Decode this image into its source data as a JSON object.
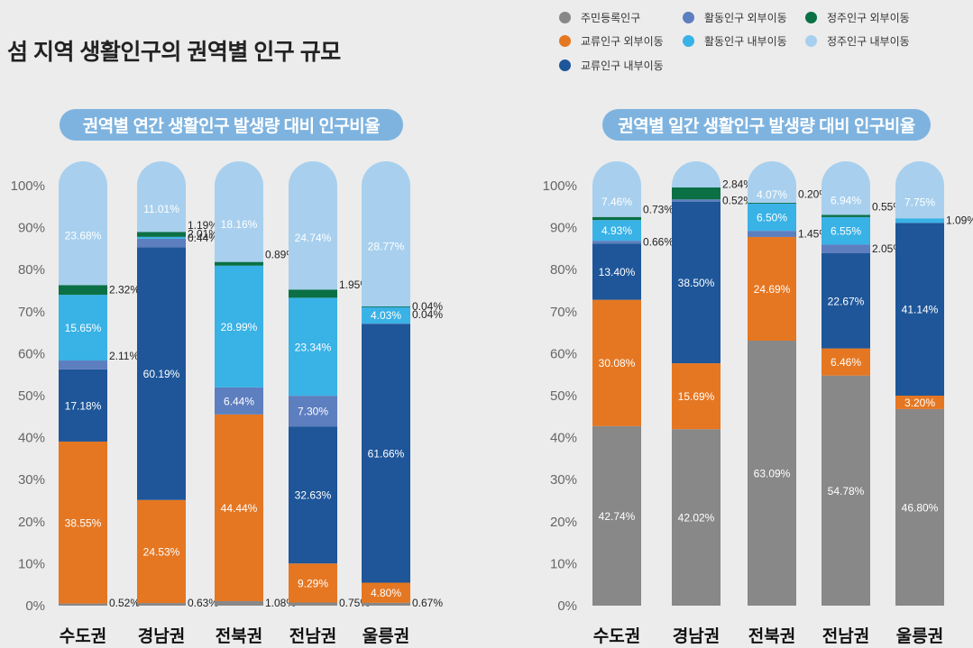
{
  "page": {
    "title": "섬 지역 생활인구의 권역별 인구 규모"
  },
  "legend": [
    {
      "label": "주민등록인구",
      "color": "#888888"
    },
    {
      "label": "활동인구 외부이동",
      "color": "#5d7ebf"
    },
    {
      "label": "정주인구 외부이동",
      "color": "#0b7045"
    },
    {
      "label": "교류인구 외부이동",
      "color": "#e57722"
    },
    {
      "label": "활동인구 내부이동",
      "color": "#39b2e6"
    },
    {
      "label": "정주인구 내부이동",
      "color": "#a8d0ee"
    },
    {
      "label": "교류인구 내부이동",
      "color": "#1e5699"
    }
  ],
  "chart_data": [
    {
      "type": "bar",
      "stacked": true,
      "title": "권역별 연간 생활인구 발생량 대비 인구비율",
      "categories": [
        "수도권",
        "경남권",
        "전북권",
        "전남권",
        "울릉권"
      ],
      "yticks": [
        "0%",
        "10%",
        "20%",
        "30%",
        "40%",
        "50%",
        "60%",
        "70%",
        "80%",
        "90%",
        "100%"
      ],
      "ylim": [
        0,
        100
      ],
      "series": [
        {
          "name": "주민등록인구",
          "color": "#888888",
          "values": [
            0.52,
            0.63,
            1.08,
            0.75,
            0.67
          ],
          "labels": [
            "0.52%",
            "0.63%",
            "1.08%",
            "0.75%",
            "0.67%"
          ]
        },
        {
          "name": "교류인구 외부이동",
          "color": "#e57722",
          "values": [
            38.55,
            24.53,
            44.44,
            9.29,
            4.8
          ],
          "labels": [
            "38.55%",
            "24.53%",
            "44.44%",
            "9.29%",
            "4.80%"
          ]
        },
        {
          "name": "교류인구 내부이동",
          "color": "#1e5699",
          "values": [
            17.18,
            60.19,
            0,
            32.63,
            61.66
          ],
          "labels": [
            "17.18%",
            "60.19%",
            "",
            "32.63%",
            "61.66%"
          ]
        },
        {
          "name": "활동인구 외부이동",
          "color": "#5d7ebf",
          "values": [
            2.11,
            2.01,
            6.44,
            7.3,
            0.04
          ],
          "labels": [
            "2.11%",
            "2.01%",
            "6.44%",
            "7.30%",
            "0.04%"
          ]
        },
        {
          "name": "활동인구 내부이동",
          "color": "#39b2e6",
          "values": [
            15.65,
            0.44,
            28.99,
            23.34,
            4.03
          ],
          "labels": [
            "15.65%",
            "0.44%",
            "28.99%",
            "23.34%",
            "4.03%"
          ]
        },
        {
          "name": "정주인구 외부이동",
          "color": "#0b7045",
          "values": [
            2.32,
            1.19,
            0.89,
            1.95,
            0.04
          ],
          "labels": [
            "2.32%",
            "1.19%",
            "0.89%",
            "1.95%",
            "0.04%"
          ]
        },
        {
          "name": "정주인구 내부이동",
          "color": "#a8d0ee",
          "values": [
            23.68,
            11.01,
            18.16,
            24.74,
            28.77
          ],
          "labels": [
            "23.68%",
            "11.01%",
            "18.16%",
            "24.74%",
            "28.77%"
          ]
        }
      ]
    },
    {
      "type": "bar",
      "stacked": true,
      "title": "권역별 일간 생활인구 발생량 대비 인구비율",
      "categories": [
        "수도권",
        "경남권",
        "전북권",
        "전남권",
        "울릉권"
      ],
      "yticks": [
        "0%",
        "10%",
        "20%",
        "30%",
        "40%",
        "50%",
        "60%",
        "70%",
        "80%",
        "90%",
        "100%"
      ],
      "ylim": [
        0,
        100
      ],
      "series": [
        {
          "name": "주민등록인구",
          "color": "#888888",
          "values": [
            42.74,
            42.02,
            63.09,
            54.78,
            46.8
          ],
          "labels": [
            "42.74%",
            "42.02%",
            "63.09%",
            "54.78%",
            "46.80%"
          ]
        },
        {
          "name": "교류인구 외부이동",
          "color": "#e57722",
          "values": [
            30.08,
            15.69,
            24.69,
            6.46,
            3.2
          ],
          "labels": [
            "30.08%",
            "15.69%",
            "24.69%",
            "6.46%",
            "3.20%"
          ]
        },
        {
          "name": "교류인구 내부이동",
          "color": "#1e5699",
          "values": [
            13.4,
            38.5,
            0,
            22.67,
            41.14
          ],
          "labels": [
            "13.40%",
            "38.50%",
            "",
            "22.67%",
            "41.14%"
          ]
        },
        {
          "name": "활동인구 외부이동",
          "color": "#5d7ebf",
          "values": [
            0.66,
            0.52,
            1.45,
            2.05,
            0
          ],
          "labels": [
            "0.66%",
            "0.52%",
            "1.45%",
            "2.05%",
            ""
          ]
        },
        {
          "name": "활동인구 내부이동",
          "color": "#39b2e6",
          "values": [
            4.93,
            0,
            6.5,
            6.55,
            1.09
          ],
          "labels": [
            "4.93%",
            "",
            "6.50%",
            "6.55%",
            "1.09%"
          ]
        },
        {
          "name": "정주인구 외부이동",
          "color": "#0b7045",
          "values": [
            0.73,
            2.84,
            0.2,
            0.55,
            0
          ],
          "labels": [
            "0.73%",
            "2.84%",
            "0.20%",
            "0.55%",
            ""
          ]
        },
        {
          "name": "정주인구 내부이동",
          "color": "#a8d0ee",
          "values": [
            7.46,
            0,
            4.07,
            6.94,
            7.75
          ],
          "labels": [
            "7.46%",
            "",
            "4.07%",
            "6.94%",
            "7.75%"
          ]
        }
      ]
    }
  ]
}
